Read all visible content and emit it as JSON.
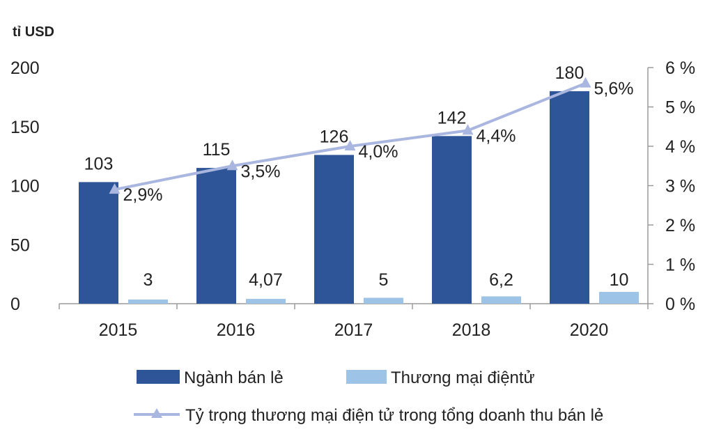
{
  "chart_data": {
    "type": "bar",
    "unit_label": "tỉ USD",
    "categories": [
      "2015",
      "2016",
      "2017",
      "2018",
      "2020"
    ],
    "ylim": [
      0,
      200
    ],
    "y_ticks": [
      "0",
      "50",
      "100",
      "150",
      "200"
    ],
    "y2lim": [
      0,
      6
    ],
    "y2_ticks": [
      "0 %",
      "1 %",
      "2 %",
      "3 %",
      "4 %",
      "5 %",
      "6 %"
    ],
    "series": [
      {
        "name": "Ngành bán lẻ",
        "kind": "bar",
        "axis": "left",
        "color": "#2e5597",
        "values": [
          103,
          115,
          126,
          142,
          180
        ],
        "labels": [
          "103",
          "115",
          "126",
          "142",
          "180"
        ]
      },
      {
        "name": "Thương mại điệntử",
        "kind": "bar",
        "axis": "left",
        "color": "#9dc3e6",
        "values": [
          3,
          4.07,
          5,
          6.2,
          10
        ],
        "labels": [
          "3",
          "4,07",
          "5",
          "6,2",
          "10"
        ]
      },
      {
        "name": "Tỷ trọng thương mại điện tử trong tổng doanh thu bán lẻ",
        "kind": "line",
        "axis": "right",
        "color": "#a9b6e0",
        "values": [
          2.9,
          3.5,
          4.0,
          4.4,
          5.6
        ],
        "labels": [
          "2,9%",
          "3,5%",
          "4,0%",
          "4,4%",
          "5,6%"
        ]
      }
    ]
  }
}
